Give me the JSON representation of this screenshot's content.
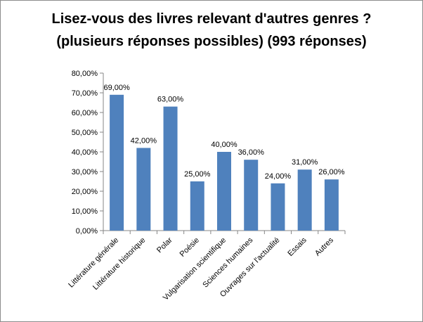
{
  "chart_data": {
    "type": "bar",
    "title_lines": [
      "Lisez-vous des livres relevant d'autres genres ?",
      "(plusieurs réponses possibles) (993 réponses)"
    ],
    "categories": [
      "Littérature générale",
      "Littérature historique",
      "Polar",
      "Poésie",
      "Vulgarisation scientifique",
      "Sciences humaines",
      "Ouvrages sur l'actualité",
      "Essais",
      "Autres"
    ],
    "values": [
      69,
      42,
      63,
      25,
      40,
      36,
      24,
      31,
      26
    ],
    "value_labels": [
      "69,00%",
      "42,00%",
      "63,00%",
      "25,00%",
      "40,00%",
      "36,00%",
      "24,00%",
      "31,00%",
      "26,00%"
    ],
    "yticks": [
      "0,00%",
      "10,00%",
      "20,00%",
      "30,00%",
      "40,00%",
      "50,00%",
      "60,00%",
      "70,00%",
      "80,00%"
    ],
    "ylim": [
      0,
      80
    ],
    "grid": false,
    "legend": "none",
    "bar_color": "#4f81bd"
  }
}
